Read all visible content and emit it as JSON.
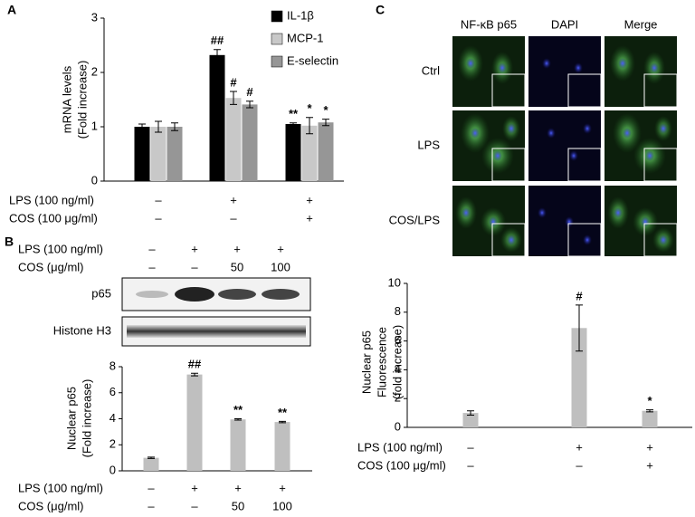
{
  "panel_labels": [
    "A",
    "B",
    "C"
  ],
  "chart_data": [
    {
      "type": "bar",
      "ylabel": [
        "mRNA levels",
        "(Fold increase)"
      ],
      "categories": [
        null,
        null,
        null
      ],
      "series": [
        {
          "name": "IL-1β",
          "color": "#000000",
          "values": [
            1,
            2.32,
            1.05
          ],
          "errors": [
            0.05,
            0.1,
            0.02
          ],
          "annotations": [
            null,
            "##",
            "**"
          ]
        },
        {
          "name": "MCP-1",
          "color": "#c8c8c8",
          "values": [
            1,
            1.53,
            1.02
          ],
          "errors": [
            0.1,
            0.12,
            0.15
          ],
          "annotations": [
            null,
            "#",
            "*"
          ]
        },
        {
          "name": "E-selectin",
          "color": "#969696",
          "values": [
            1,
            1.41,
            1.08
          ],
          "errors": [
            0.07,
            0.06,
            0.06
          ],
          "annotations": [
            null,
            "#",
            "*"
          ]
        }
      ],
      "ylim": [
        0,
        3
      ],
      "yticks": [
        0,
        1,
        2,
        3
      ],
      "legend": "upper right",
      "conditions": [
        {
          "label": "LPS (100 ng/ml)",
          "values": [
            "–",
            "+",
            "+"
          ]
        },
        {
          "label": "COS (100 μg/ml)",
          "values": [
            "–",
            "–",
            "+"
          ]
        }
      ]
    },
    {
      "type": "bar",
      "ylabel": [
        "Nuclear p65",
        "(Fold increase)"
      ],
      "categories": [
        null,
        null,
        null,
        null
      ],
      "series": [
        {
          "name": null,
          "color": "#bfbfbf",
          "values": [
            1,
            7.4,
            3.95,
            3.75
          ],
          "errors": [
            0.05,
            0.1,
            0.05,
            0.05
          ],
          "annotations": [
            null,
            "##",
            "**",
            "**"
          ]
        }
      ],
      "ylim": [
        0,
        8
      ],
      "yticks": [
        0,
        2,
        4,
        6,
        8
      ],
      "conditions": [
        {
          "label": "LPS (100 ng/ml)",
          "values": [
            "–",
            "+",
            "+",
            "+"
          ]
        },
        {
          "label": "COS (μg/ml)",
          "values": [
            "–",
            "–",
            "50",
            "100"
          ]
        }
      ]
    },
    {
      "type": "bar",
      "ylabel": [
        "Nuclear p65",
        "Fluorescence",
        "(fold increase)"
      ],
      "categories": [
        null,
        null,
        null
      ],
      "series": [
        {
          "name": null,
          "color": "#bfbfbf",
          "values": [
            1,
            6.9,
            1.15
          ],
          "errors": [
            0.15,
            1.6,
            0.07
          ],
          "annotations": [
            null,
            "#",
            "*"
          ]
        }
      ],
      "ylim": [
        0,
        10
      ],
      "yticks": [
        0,
        2,
        4,
        6,
        8,
        10
      ],
      "conditions": [
        {
          "label": "LPS (100 ng/ml)",
          "values": [
            "–",
            "+",
            "+"
          ]
        },
        {
          "label": "COS (100 μg/ml)",
          "values": [
            "–",
            "–",
            "+"
          ]
        }
      ]
    }
  ],
  "blot": {
    "rows": [
      "p65",
      "Histone H3"
    ],
    "conditions": [
      {
        "label": "LPS (100 ng/ml)",
        "values": [
          "–",
          "+",
          "+",
          "+"
        ]
      },
      {
        "label": "COS (μg/ml)",
        "values": [
          "–",
          "–",
          "50",
          "100"
        ]
      }
    ]
  },
  "imaging": {
    "columns": [
      "NF-κB p65",
      "DAPI",
      "Merge"
    ],
    "rows": [
      "Ctrl",
      "LPS",
      "COS/LPS"
    ]
  }
}
